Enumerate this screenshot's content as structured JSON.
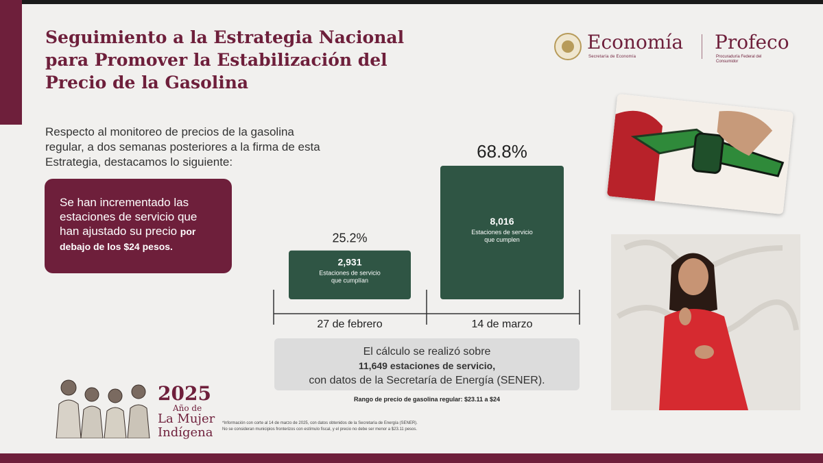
{
  "title": "Seguimiento a la Estrategia Nacional para Promover la Estabilización del Precio de la Gasolina",
  "logos": {
    "economia": "Economía",
    "economia_sub": "Secretaría de Economía",
    "profeco": "Profeco",
    "profeco_sub": "Procuraduría Federal del Consumidor"
  },
  "intro": "Respecto al monitoreo de precios de la gasolina regular, a dos semanas posteriores a la firma de esta Estrategia, destacamos lo siguiente:",
  "callout": {
    "text": "Se han incrementado las estaciones de servicio que han ajustado su precio",
    "bold": "por debajo de los $24 pesos."
  },
  "chart_data": {
    "type": "bar",
    "categories": [
      "27 de febrero",
      "14 de marzo"
    ],
    "values": [
      2931,
      8016
    ],
    "percent_labels": [
      "25.2%",
      "68.8%"
    ],
    "value_labels": [
      "2,931",
      "8,016"
    ],
    "bar_captions": [
      [
        "Estaciones de servicio",
        "que cumplían"
      ],
      [
        "Estaciones de servicio",
        "que cumplen"
      ]
    ],
    "colors": {
      "bar": "#2f5544",
      "axis": "#333333"
    }
  },
  "note": {
    "line1": "El cálculo se realizó sobre",
    "line2": "11,649 estaciones de servicio,",
    "line3": "con datos de la Secretaría de Energía (SENER)."
  },
  "range": "Rango de precio de gasolina regular: $23.11 a $24",
  "footnote": {
    "line1": "*Información con corte al 14 de marzo de 2025, con datos obtenidos de la Secretaría de Energía (SENER).",
    "line2": "No se consideran municipios fronterizos con estímulo fiscal, y el precio no debe ser menor a $23.11 pesos."
  },
  "year_badge": {
    "year": "2025",
    "line1": "Año de",
    "line2": "La Mujer",
    "line3": "Indígena"
  },
  "colors": {
    "brand": "#6e1f3b",
    "bar": "#2f5544",
    "background": "#f1f0ee",
    "note_box": "#dcdcdc"
  }
}
